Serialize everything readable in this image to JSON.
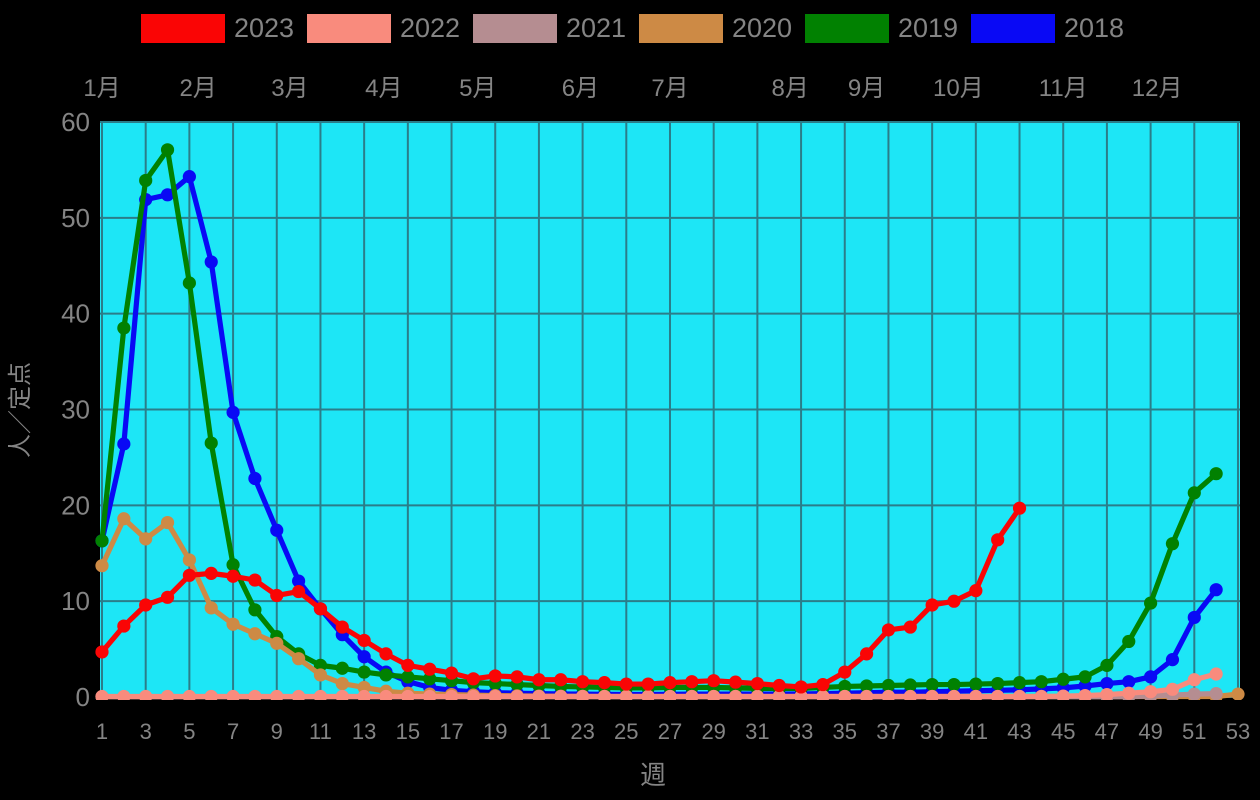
{
  "legend": {
    "items": [
      {
        "label": "2023",
        "color": "#fa0505"
      },
      {
        "label": "2022",
        "color": "#f98b7d"
      },
      {
        "label": "2021",
        "color": "#b58d91"
      },
      {
        "label": "2020",
        "color": "#cd8a45"
      },
      {
        "label": "2019",
        "color": "#018101"
      },
      {
        "label": "2018",
        "color": "#0909f5"
      }
    ]
  },
  "chart_data": {
    "type": "line",
    "title": "",
    "xlabel": "週",
    "ylabel": "人／定点",
    "figure_bg": "#000000",
    "plot_bg": "#1de6f6",
    "grid_color": "#2b7d89",
    "tick_color": "#848484",
    "grid": true,
    "legend_position": "top",
    "xlim": [
      1,
      53
    ],
    "ylim": [
      0,
      60
    ],
    "y_ticks": [
      0,
      10,
      20,
      30,
      40,
      50,
      60
    ],
    "x_ticks": [
      1,
      3,
      5,
      7,
      9,
      11,
      13,
      15,
      17,
      19,
      21,
      23,
      25,
      27,
      29,
      31,
      33,
      35,
      37,
      39,
      41,
      43,
      45,
      47,
      49,
      51,
      53
    ],
    "months": [
      "1月",
      "2月",
      "3月",
      "4月",
      "5月",
      "6月",
      "7月",
      "8月",
      "9月",
      "10月",
      "11月",
      "12月"
    ],
    "month_week_positions": [
      1,
      5.4,
      9.6,
      13.9,
      18.2,
      22.9,
      27.0,
      32.5,
      36.0,
      40.2,
      45.0,
      49.3
    ],
    "series": [
      {
        "name": "2018",
        "color": "#0909f5",
        "start_week": 1,
        "values": [
          16.3,
          26.4,
          51.9,
          52.4,
          54.3,
          45.4,
          29.7,
          22.8,
          17.4,
          12.1,
          9.2,
          6.5,
          4.2,
          2.6,
          1.6,
          1.0,
          0.7,
          0.55,
          0.45,
          0.4,
          0.35,
          0.32,
          0.3,
          0.28,
          0.26,
          0.26,
          0.28,
          0.3,
          0.3,
          0.3,
          0.3,
          0.3,
          0.32,
          0.35,
          0.4,
          0.45,
          0.5,
          0.5,
          0.55,
          0.6,
          0.65,
          0.7,
          0.75,
          0.85,
          0.95,
          1.15,
          1.4,
          1.6,
          2.1,
          3.9,
          8.3,
          11.2
        ]
      },
      {
        "name": "2019",
        "color": "#018101",
        "start_week": 1,
        "values": [
          16.3,
          38.5,
          53.9,
          57.1,
          43.2,
          26.5,
          13.8,
          9.1,
          6.3,
          4.5,
          3.3,
          3.0,
          2.6,
          2.3,
          2.1,
          1.9,
          1.7,
          1.5,
          1.4,
          1.3,
          1.2,
          1.1,
          1.05,
          1.0,
          0.95,
          0.95,
          1.0,
          1.0,
          1.0,
          0.95,
          0.9,
          0.9,
          0.9,
          1.0,
          1.1,
          1.15,
          1.2,
          1.25,
          1.3,
          1.3,
          1.35,
          1.4,
          1.5,
          1.6,
          1.85,
          2.1,
          3.3,
          5.8,
          9.8,
          16.0,
          21.3,
          23.3
        ]
      },
      {
        "name": "2020",
        "color": "#cd8a45",
        "start_week": 1,
        "values": [
          13.7,
          18.6,
          16.5,
          18.2,
          14.3,
          9.3,
          7.6,
          6.6,
          5.6,
          4.0,
          2.3,
          1.4,
          1.0,
          0.6,
          0.4,
          0.3,
          0.25,
          0.2,
          0.15,
          0.12,
          0.1,
          0.08,
          0.07,
          0.06,
          0.05,
          0.05,
          0.05,
          0.05,
          0.05,
          0.05,
          0.05,
          0.05,
          0.05,
          0.05,
          0.05,
          0.05,
          0.05,
          0.05,
          0.05,
          0.05,
          0.05,
          0.05,
          0.05,
          0.05,
          0.05,
          0.05,
          0.05,
          0.05,
          0.05,
          0.05,
          0.05,
          0.05,
          0.3
        ]
      },
      {
        "name": "2021",
        "color": "#b58d91",
        "start_week": 1,
        "values": [
          0.03,
          0.03,
          0.03,
          0.03,
          0.03,
          0.03,
          0.03,
          0.03,
          0.03,
          0.03,
          0.03,
          0.03,
          0.03,
          0.03,
          0.03,
          0.03,
          0.03,
          0.03,
          0.03,
          0.03,
          0.03,
          0.03,
          0.03,
          0.03,
          0.03,
          0.03,
          0.03,
          0.03,
          0.03,
          0.03,
          0.03,
          0.03,
          0.03,
          0.03,
          0.03,
          0.03,
          0.03,
          0.03,
          0.03,
          0.03,
          0.03,
          0.03,
          0.03,
          0.03,
          0.03,
          0.03,
          0.03,
          0.03,
          0.1,
          0.2,
          0.3,
          0.35
        ]
      },
      {
        "name": "2022",
        "color": "#f98b7d",
        "start_week": 1,
        "values": [
          0.05,
          0.05,
          0.05,
          0.05,
          0.05,
          0.05,
          0.05,
          0.05,
          0.05,
          0.05,
          0.05,
          0.05,
          0.05,
          0.05,
          0.05,
          0.05,
          0.05,
          0.05,
          0.05,
          0.05,
          0.05,
          0.05,
          0.05,
          0.05,
          0.05,
          0.05,
          0.05,
          0.05,
          0.05,
          0.05,
          0.05,
          0.05,
          0.05,
          0.05,
          0.05,
          0.05,
          0.05,
          0.05,
          0.05,
          0.05,
          0.05,
          0.05,
          0.05,
          0.05,
          0.1,
          0.15,
          0.25,
          0.4,
          0.55,
          0.8,
          1.8,
          2.4
        ]
      },
      {
        "name": "2023",
        "color": "#fa0505",
        "start_week": 1,
        "values": [
          4.7,
          7.4,
          9.6,
          10.4,
          12.7,
          12.9,
          12.6,
          12.2,
          10.6,
          11.0,
          9.2,
          7.3,
          5.9,
          4.5,
          3.3,
          2.9,
          2.5,
          1.9,
          2.2,
          2.1,
          1.8,
          1.8,
          1.6,
          1.5,
          1.35,
          1.35,
          1.5,
          1.6,
          1.7,
          1.55,
          1.4,
          1.2,
          1.05,
          1.3,
          2.6,
          4.5,
          7.0,
          7.3,
          9.6,
          10.0,
          11.1,
          16.4,
          19.7
        ]
      }
    ]
  }
}
